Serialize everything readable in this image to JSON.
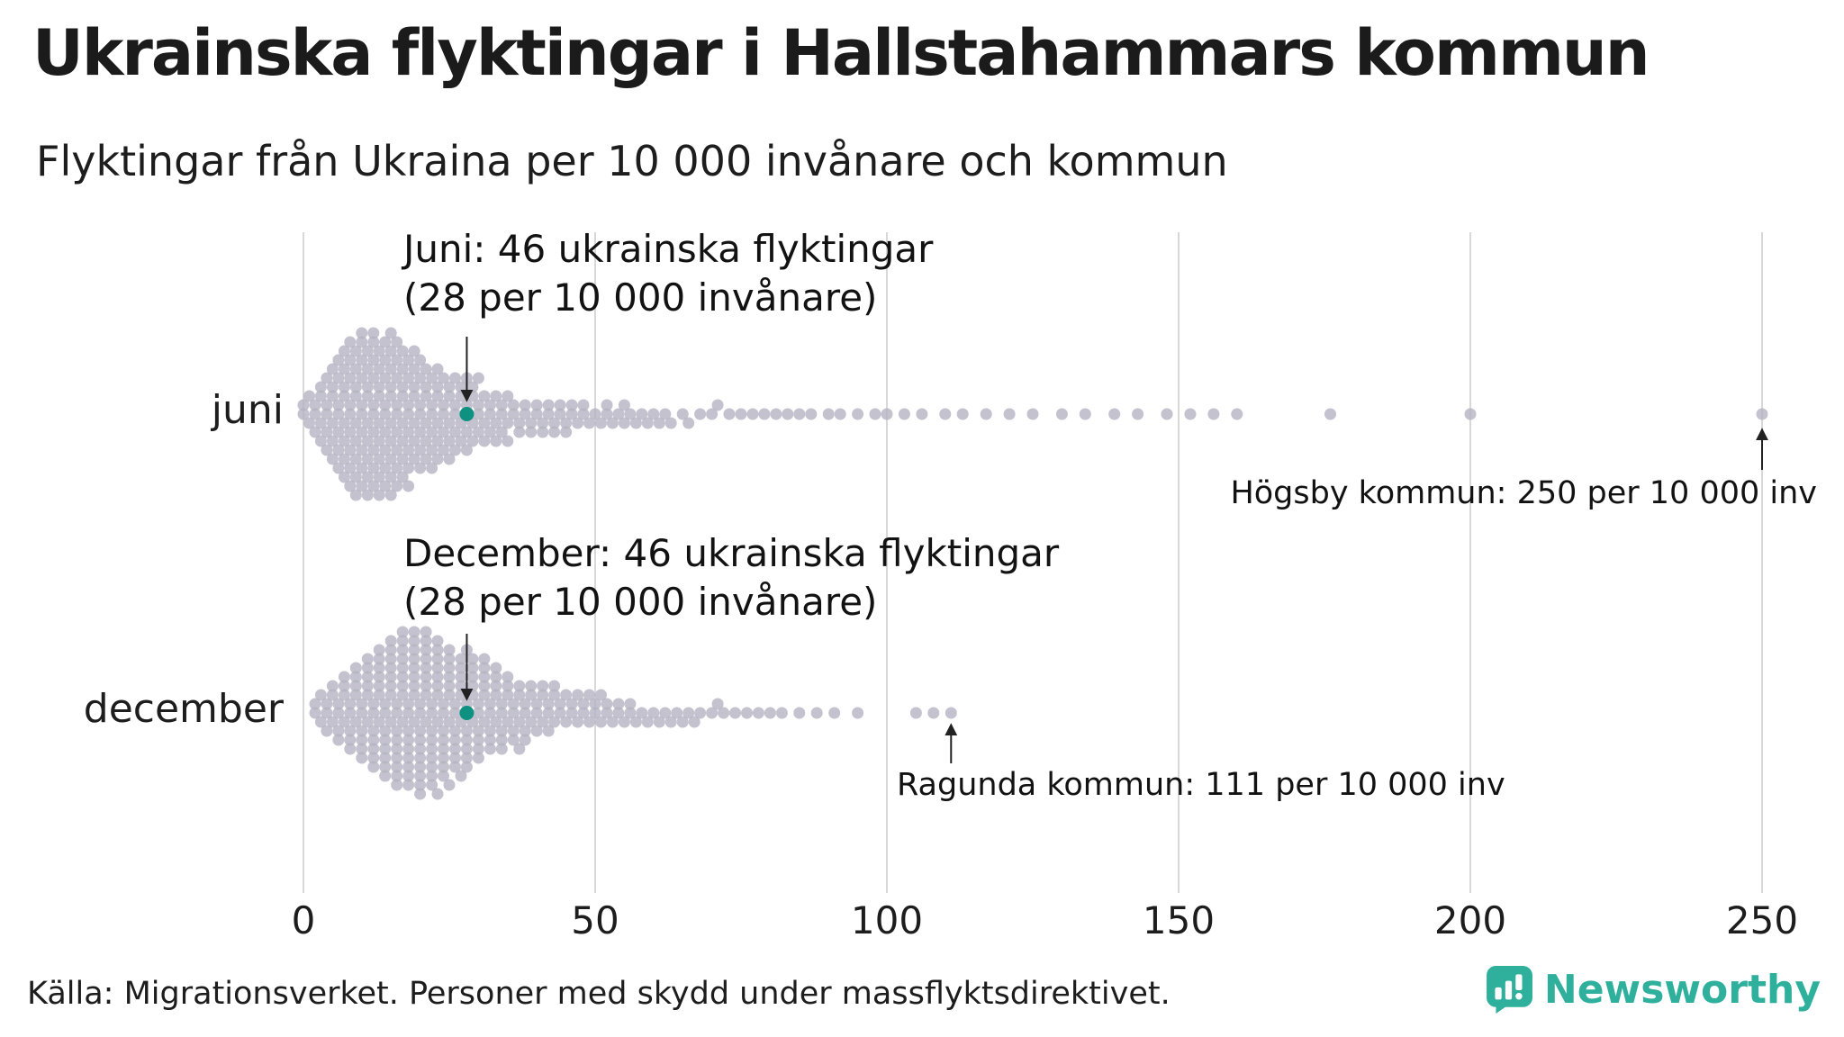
{
  "title": "Ukrainska flyktingar i Hallstahammars kommun",
  "subtitle": "Flyktingar från Ukraina per 10 000 invånare och kommun",
  "source": "Källa: Migrationsverket. Personer med skydd under massflyktsdirektivet.",
  "logo": {
    "text": "Newsworthy"
  },
  "colors": {
    "dot": "#b4b3c2",
    "highlight": "#0f9181",
    "grid": "#d8d8d8",
    "accent": "#2fb09c",
    "arrow": "#222222"
  },
  "chart_data": {
    "type": "scatter",
    "variant": "beeswarm",
    "title": "Ukrainska flyktingar i Hallstahammars kommun",
    "subtitle": "Flyktingar från Ukraina per 10 000 invånare och kommun",
    "xlabel": "",
    "ylabel": "",
    "xlim": [
      0,
      250
    ],
    "x_ticks": [
      0,
      50,
      100,
      150,
      200,
      250
    ],
    "grid": "vertical",
    "points_format": "[value, count] pairs; value = flyktingar per 10 000 invånare; distribution estimated from figure",
    "rows": [
      {
        "label": "juni",
        "callout": {
          "line1": "Juni: 46 ukrainska flyktingar",
          "line2": "(28 per 10 000 invånare)",
          "value": 28
        },
        "points": [
          [
            0,
            2
          ],
          [
            1,
            2
          ],
          [
            2,
            3
          ],
          [
            3,
            4
          ],
          [
            4,
            5
          ],
          [
            5,
            6
          ],
          [
            6,
            7
          ],
          [
            7,
            8
          ],
          [
            8,
            9
          ],
          [
            9,
            9
          ],
          [
            10,
            10
          ],
          [
            11,
            9
          ],
          [
            12,
            10
          ],
          [
            13,
            9
          ],
          [
            14,
            9
          ],
          [
            15,
            10
          ],
          [
            16,
            9
          ],
          [
            17,
            8
          ],
          [
            18,
            8
          ],
          [
            19,
            7
          ],
          [
            20,
            7
          ],
          [
            21,
            6
          ],
          [
            22,
            6
          ],
          [
            23,
            6
          ],
          [
            24,
            5
          ],
          [
            25,
            5
          ],
          [
            26,
            5
          ],
          [
            27,
            4
          ],
          [
            28,
            4
          ],
          [
            29,
            4
          ],
          [
            30,
            4
          ],
          [
            31,
            3
          ],
          [
            32,
            3
          ],
          [
            33,
            3
          ],
          [
            34,
            3
          ],
          [
            35,
            3
          ],
          [
            36,
            2
          ],
          [
            37,
            2
          ],
          [
            38,
            2
          ],
          [
            39,
            2
          ],
          [
            40,
            2
          ],
          [
            41,
            2
          ],
          [
            42,
            2
          ],
          [
            43,
            2
          ],
          [
            44,
            2
          ],
          [
            45,
            2
          ],
          [
            46,
            2
          ],
          [
            47,
            1
          ],
          [
            48,
            2
          ],
          [
            49,
            1
          ],
          [
            50,
            1
          ],
          [
            51,
            1
          ],
          [
            52,
            2
          ],
          [
            53,
            1
          ],
          [
            54,
            1
          ],
          [
            55,
            2
          ],
          [
            56,
            1
          ],
          [
            57,
            1
          ],
          [
            58,
            1
          ],
          [
            59,
            1
          ],
          [
            60,
            1
          ],
          [
            61,
            1
          ],
          [
            62,
            1
          ],
          [
            63,
            1
          ],
          [
            65,
            1
          ],
          [
            66,
            1
          ],
          [
            68,
            1
          ],
          [
            70,
            1
          ],
          [
            71,
            1
          ],
          [
            73,
            1
          ],
          [
            75,
            1
          ],
          [
            77,
            1
          ],
          [
            79,
            1
          ],
          [
            81,
            1
          ],
          [
            83,
            1
          ],
          [
            85,
            1
          ],
          [
            87,
            1
          ],
          [
            90,
            1
          ],
          [
            92,
            1
          ],
          [
            95,
            1
          ],
          [
            98,
            1
          ],
          [
            100,
            1
          ],
          [
            103,
            1
          ],
          [
            106,
            1
          ],
          [
            110,
            1
          ],
          [
            113,
            1
          ],
          [
            117,
            1
          ],
          [
            121,
            1
          ],
          [
            125,
            1
          ],
          [
            130,
            1
          ],
          [
            134,
            1
          ],
          [
            139,
            1
          ],
          [
            143,
            1
          ],
          [
            148,
            1
          ],
          [
            152,
            1
          ],
          [
            156,
            1
          ],
          [
            160,
            1
          ],
          [
            176,
            1
          ],
          [
            200,
            1
          ],
          [
            250,
            1
          ]
        ]
      },
      {
        "label": "december",
        "callout": {
          "line1": "December: 46 ukrainska flyktingar",
          "line2": "(28 per 10 000 invånare)",
          "value": 28
        },
        "points": [
          [
            2,
            2
          ],
          [
            3,
            2
          ],
          [
            4,
            3
          ],
          [
            5,
            3
          ],
          [
            6,
            4
          ],
          [
            7,
            4
          ],
          [
            8,
            5
          ],
          [
            9,
            5
          ],
          [
            10,
            6
          ],
          [
            11,
            6
          ],
          [
            12,
            7
          ],
          [
            13,
            7
          ],
          [
            14,
            8
          ],
          [
            15,
            8
          ],
          [
            16,
            9
          ],
          [
            17,
            9
          ],
          [
            18,
            9
          ],
          [
            19,
            9
          ],
          [
            20,
            10
          ],
          [
            21,
            9
          ],
          [
            22,
            9
          ],
          [
            23,
            9
          ],
          [
            24,
            8
          ],
          [
            25,
            8
          ],
          [
            26,
            7
          ],
          [
            27,
            7
          ],
          [
            28,
            7
          ],
          [
            29,
            6
          ],
          [
            30,
            6
          ],
          [
            31,
            6
          ],
          [
            32,
            5
          ],
          [
            33,
            5
          ],
          [
            34,
            5
          ],
          [
            35,
            4
          ],
          [
            36,
            4
          ],
          [
            37,
            4
          ],
          [
            38,
            4
          ],
          [
            39,
            3
          ],
          [
            40,
            3
          ],
          [
            41,
            3
          ],
          [
            42,
            3
          ],
          [
            43,
            3
          ],
          [
            44,
            2
          ],
          [
            45,
            2
          ],
          [
            46,
            2
          ],
          [
            47,
            2
          ],
          [
            48,
            2
          ],
          [
            49,
            2
          ],
          [
            50,
            2
          ],
          [
            51,
            2
          ],
          [
            52,
            2
          ],
          [
            53,
            1
          ],
          [
            54,
            2
          ],
          [
            55,
            1
          ],
          [
            56,
            2
          ],
          [
            57,
            1
          ],
          [
            58,
            1
          ],
          [
            59,
            1
          ],
          [
            60,
            1
          ],
          [
            61,
            1
          ],
          [
            62,
            1
          ],
          [
            63,
            1
          ],
          [
            64,
            1
          ],
          [
            65,
            1
          ],
          [
            66,
            1
          ],
          [
            67,
            1
          ],
          [
            68,
            1
          ],
          [
            70,
            1
          ],
          [
            71,
            1
          ],
          [
            72,
            1
          ],
          [
            74,
            1
          ],
          [
            76,
            1
          ],
          [
            78,
            1
          ],
          [
            80,
            1
          ],
          [
            82,
            1
          ],
          [
            85,
            1
          ],
          [
            88,
            1
          ],
          [
            91,
            1
          ],
          [
            95,
            1
          ],
          [
            105,
            1
          ],
          [
            108,
            1
          ],
          [
            111,
            1
          ]
        ]
      }
    ],
    "annotations": [
      {
        "row": 0,
        "value": 250,
        "text": "Högsby kommun: 250 per 10 000 inv"
      },
      {
        "row": 1,
        "value": 111,
        "text": "Ragunda kommun: 111 per 10 000 inv"
      }
    ]
  }
}
